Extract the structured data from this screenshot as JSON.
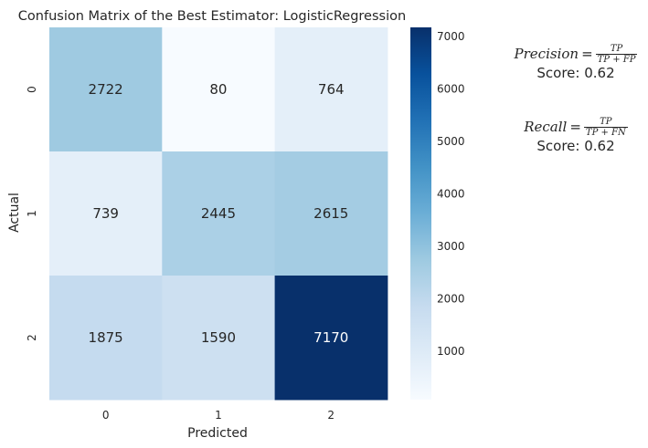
{
  "chart_data": {
    "type": "heatmap",
    "title": "Confusion Matrix of the Best Estimator: LogisticRegression",
    "xlabel": "Predicted",
    "ylabel": "Actual",
    "x_categories": [
      "0",
      "1",
      "2"
    ],
    "y_categories": [
      "0",
      "1",
      "2"
    ],
    "matrix": [
      [
        2722,
        80,
        764
      ],
      [
        739,
        2445,
        2615
      ],
      [
        1875,
        1590,
        7170
      ]
    ],
    "colormap": "Blues",
    "colorbar": {
      "range": [
        80,
        7170
      ],
      "ticks": [
        1000,
        2000,
        3000,
        4000,
        5000,
        6000,
        7000
      ],
      "tick_labels": [
        "1000",
        "2000",
        "3000",
        "4000",
        "5000",
        "6000",
        "7000"
      ]
    },
    "colors": {
      "low": "#f7fbff",
      "high": "#08306b",
      "text_dark": "#262626",
      "text_light": "#ffffff"
    }
  },
  "annotations": {
    "precision": {
      "name": "Precision",
      "equals": "=",
      "numerator": "TP",
      "denominator": "TP + FP",
      "score_text": "Score: 0.62"
    },
    "recall": {
      "name": "Recall",
      "equals": "=",
      "numerator": "TP",
      "denominator": "TP + FN",
      "score_text": "Score: 0.62"
    }
  }
}
